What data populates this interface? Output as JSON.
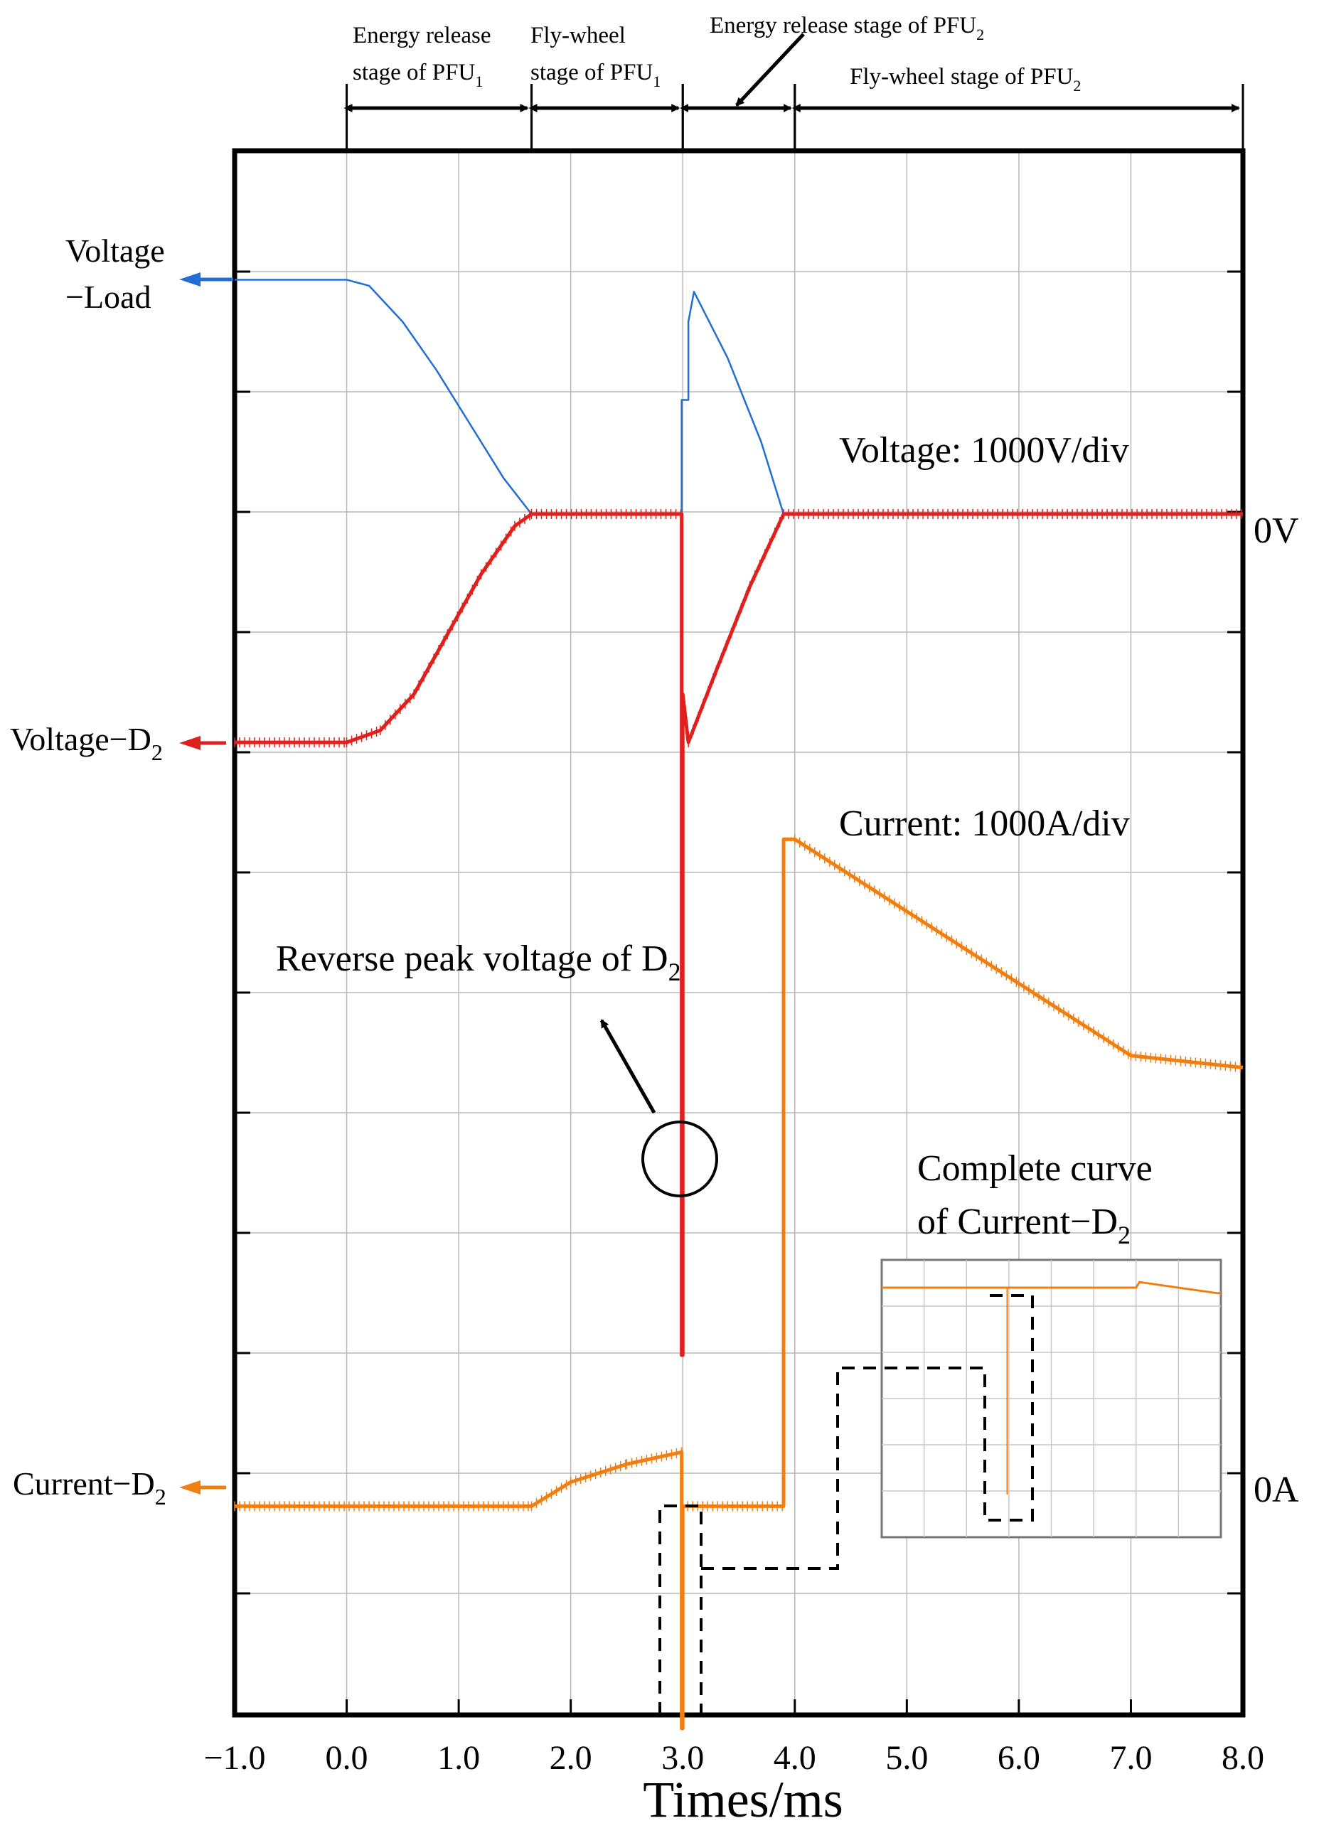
{
  "chart_data": {
    "type": "line",
    "xlabel": "Times/ms",
    "xlim": [
      -1.0,
      8.0
    ],
    "x_ticks": [
      "−1.0",
      "0.0",
      "1.0",
      "2.0",
      "3.0",
      "4.0",
      "5.0",
      "6.0",
      "7.0",
      "8.0"
    ],
    "x_tick_values": [
      -1,
      0,
      1,
      2,
      3,
      4,
      5,
      6,
      7,
      8
    ],
    "grid": true,
    "voltage_scale": "Voltage: 1000V/div",
    "current_scale": "Current: 1000A/div",
    "zero_labels": {
      "voltage": "0V",
      "current": "0A"
    },
    "stages": [
      {
        "line1": "Energy release",
        "line2": "stage of PFU",
        "sub": "1",
        "x_start": 0.0,
        "x_end": 1.65
      },
      {
        "line1": "Fly-wheel",
        "line2": "stage of PFU",
        "sub": "1",
        "x_start": 1.65,
        "x_end": 3.0
      },
      {
        "line1": "Energy release stage of  PFU",
        "sub": "2",
        "x_start": 3.0,
        "x_end": 4.0
      },
      {
        "line1": "Fly-wheel stage of PFU",
        "sub": "2",
        "x_start": 4.0,
        "x_end": 8.0
      }
    ],
    "series": [
      {
        "name": "Voltage−Load",
        "name_line1": "Voltage",
        "name_line2": "−Load",
        "color": "#1f6fd6",
        "unit": "div",
        "x": [
          -1.0,
          0.0,
          0.2,
          0.5,
          0.8,
          1.1,
          1.4,
          1.65,
          2.99,
          2.99,
          3.05,
          3.05,
          3.1,
          3.4,
          3.7,
          3.9,
          8.0
        ],
        "y": [
          1.95,
          1.95,
          1.9,
          1.6,
          1.2,
          0.75,
          0.3,
          0.0,
          0.0,
          0.95,
          0.95,
          1.6,
          1.85,
          1.3,
          0.6,
          0.0,
          0.0
        ]
      },
      {
        "name": "Voltage−D2",
        "name_main": "Voltage−D",
        "name_sub": "2",
        "color": "#e0201c",
        "unit": "div",
        "x": [
          -1.0,
          0.0,
          0.3,
          0.6,
          0.9,
          1.2,
          1.5,
          1.65,
          2.99,
          2.99,
          3.0,
          3.0,
          3.05,
          3.3,
          3.6,
          3.9,
          8.0
        ],
        "y": [
          -1.9,
          -1.9,
          -1.8,
          -1.5,
          -1.0,
          -0.5,
          -0.1,
          0.0,
          0.0,
          -7.0,
          -7.0,
          -1.5,
          -1.9,
          -1.3,
          -0.6,
          0.0,
          0.0
        ]
      },
      {
        "name": "Current−D2",
        "name_main": "Current−D",
        "name_sub": "2",
        "color": "#f07f12",
        "unit": "div",
        "x": [
          -1.0,
          1.65,
          2.0,
          2.5,
          2.99,
          2.99,
          3.0,
          3.0,
          3.9,
          3.9,
          4.0,
          5.0,
          6.0,
          7.0,
          8.0
        ],
        "y": [
          -0.15,
          -0.15,
          0.05,
          0.2,
          0.3,
          -2.0,
          -2.0,
          -0.15,
          -0.15,
          5.4,
          5.4,
          4.8,
          4.2,
          3.6,
          3.5
        ]
      }
    ],
    "annotations": [
      {
        "text": "Reverse peak voltage of D",
        "sub": "2"
      },
      {
        "line1": "Complete curve",
        "line2": "of Current−D",
        "sub": "2"
      }
    ],
    "inset": {
      "title": "Complete curve of Current−D2",
      "color": "#f07f12",
      "x": [
        0,
        0.45,
        0.75,
        0.76,
        0.99,
        1.0
      ],
      "y": [
        0.9,
        0.9,
        0.9,
        0.92,
        0.88,
        0.88
      ]
    }
  }
}
